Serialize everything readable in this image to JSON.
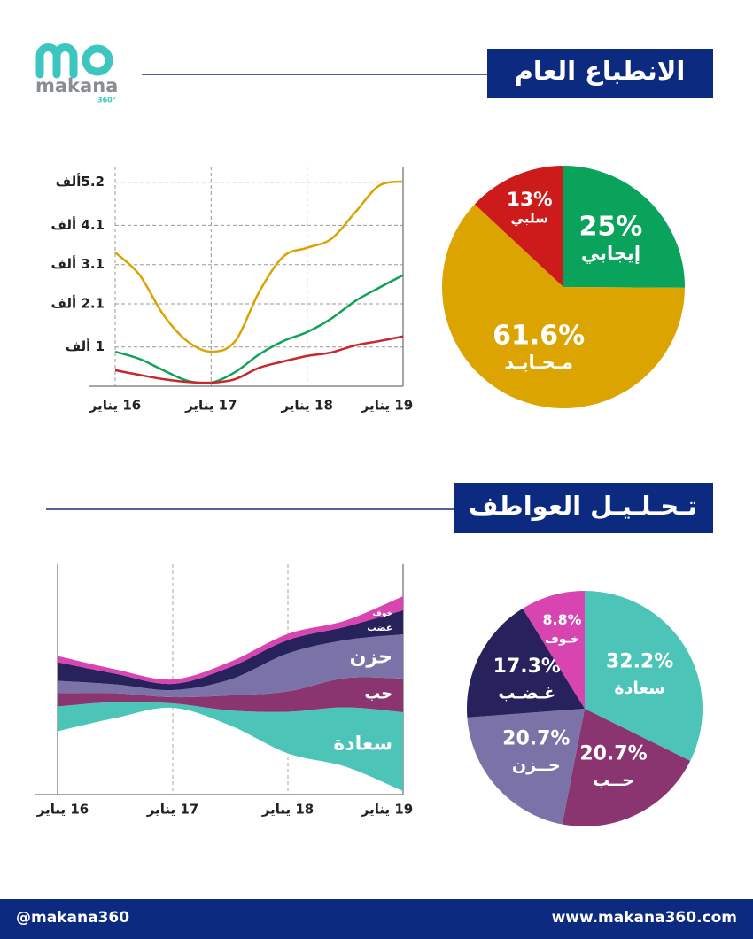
{
  "logo": {
    "name": "makana",
    "badge": "360°"
  },
  "sections": [
    {
      "title": "الانطباع العام"
    },
    {
      "title": "تـحـلـيـل العواطف"
    }
  ],
  "chart_data": [
    {
      "type": "line",
      "x": [
        16,
        16.25,
        16.5,
        16.75,
        17,
        17.25,
        17.5,
        17.75,
        18,
        18.25,
        18.5,
        18.75,
        19
      ],
      "xlim": [
        16,
        19
      ],
      "xticks": [
        {
          "value": 16,
          "label": "16 يناير"
        },
        {
          "value": 17,
          "label": "17 يناير"
        },
        {
          "value": 18,
          "label": "18 يناير"
        },
        {
          "value": 19,
          "label": "19 يناير"
        }
      ],
      "ylim": [
        0,
        5600
      ],
      "yticks": [
        {
          "value": 1000,
          "label": "1 ألف"
        },
        {
          "value": 2100,
          "label": "2.1 ألف"
        },
        {
          "value": 3100,
          "label": "3.1 ألف"
        },
        {
          "value": 4100,
          "label": "4.1 ألف"
        },
        {
          "value": 5200,
          "label": "5.2ألف"
        }
      ],
      "grid": true,
      "series": [
        {
          "color": "#d9a400",
          "values": [
            3410,
            2850,
            1830,
            1150,
            880,
            1150,
            2400,
            3300,
            3530,
            3750,
            4430,
            5110,
            5220
          ]
        },
        {
          "color": "#0fa25a",
          "values": [
            880,
            700,
            410,
            140,
            90,
            360,
            810,
            1150,
            1380,
            1720,
            2170,
            2510,
            2830
          ]
        },
        {
          "color": "#c8272d",
          "values": [
            410,
            290,
            180,
            110,
            90,
            180,
            470,
            630,
            770,
            860,
            1040,
            1150,
            1270
          ]
        }
      ]
    },
    {
      "type": "pie",
      "categories": [
        "إيجابي",
        "مـحـايـد",
        "سلبي"
      ],
      "values": [
        25,
        61.6,
        13
      ],
      "value_labels": [
        "25%",
        "61.6%",
        "13%"
      ],
      "colors": [
        "#0aa35b",
        "#dba400",
        "#cd1b1b"
      ]
    },
    {
      "type": "area",
      "stacked": true,
      "offset": "silhouette",
      "x": [
        16,
        16.5,
        17,
        17.5,
        18,
        18.5,
        19
      ],
      "xlim": [
        16,
        19
      ],
      "xticks": [
        {
          "value": 16,
          "label": "16 يناير"
        },
        {
          "value": 17,
          "label": "17 يناير"
        },
        {
          "value": 18,
          "label": "18 يناير"
        },
        {
          "value": 19,
          "label": "19 يناير"
        }
      ],
      "series": [
        {
          "name": "سعادة",
          "color": "#4dc4b8",
          "values": [
            28,
            18,
            5,
            17,
            47,
            67,
            89
          ]
        },
        {
          "name": "حب",
          "color": "#8a3570",
          "values": [
            15,
            10,
            7,
            17,
            23,
            33,
            38
          ]
        },
        {
          "name": "حزن",
          "color": "#7b72a8",
          "values": [
            14,
            10,
            8,
            18,
            43,
            43,
            50
          ]
        },
        {
          "name": "غضب",
          "color": "#27215c",
          "values": [
            21,
            12,
            7,
            14,
            15,
            15,
            27
          ]
        },
        {
          "name": "خوف",
          "color": "#d845b0",
          "values": [
            7,
            5,
            5,
            6,
            7,
            7,
            16
          ]
        }
      ]
    },
    {
      "type": "pie",
      "categories": [
        "سعادة",
        "حــب",
        "حــزن",
        "غـضـب",
        "خـوف"
      ],
      "values": [
        32.2,
        20.7,
        20.7,
        17.3,
        8.8
      ],
      "value_labels": [
        "32.2%",
        "20.7%",
        "20.7%",
        "17.3%",
        "8.8%"
      ],
      "colors": [
        "#4dc4b8",
        "#8a3570",
        "#7b72a8",
        "#27215c",
        "#d845b0"
      ]
    }
  ],
  "footer": {
    "handle": "@makana360",
    "website": "www.makana360.com"
  }
}
